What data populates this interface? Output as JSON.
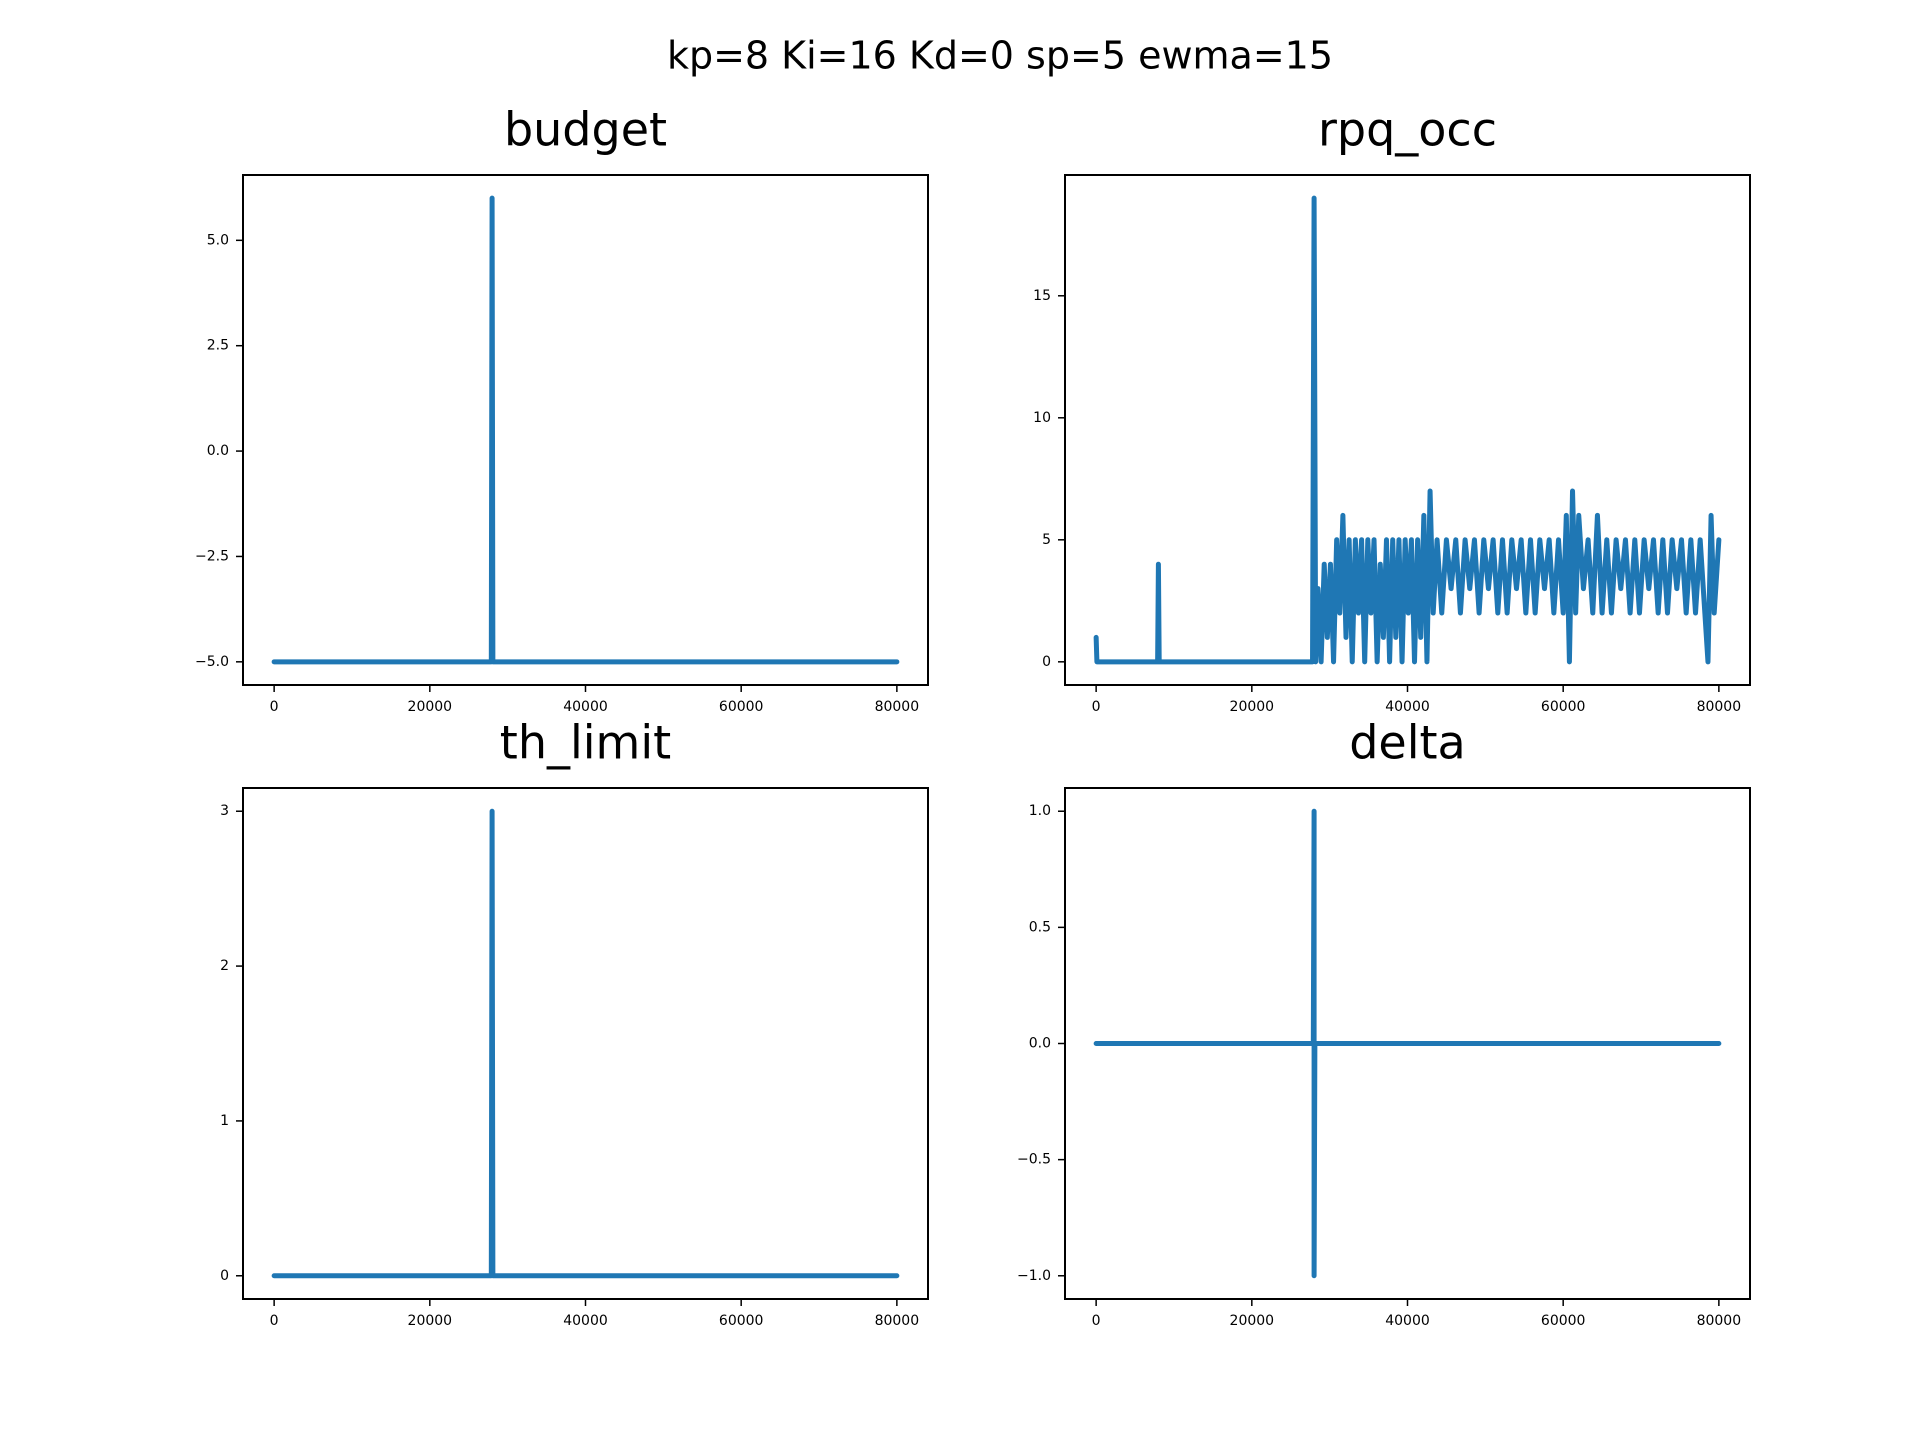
{
  "title": "kp=8 Ki=16 Kd=0 sp=5 ewma=15",
  "chart_data": [
    {
      "type": "line",
      "title": "budget",
      "color": "#1f77b4",
      "x": [
        0,
        27900,
        28000,
        28100,
        80000
      ],
      "values": [
        -5,
        -5,
        6,
        -5,
        -5
      ],
      "xlim": [
        -4000,
        84000
      ],
      "xticks": [
        0,
        20000,
        40000,
        60000,
        80000
      ],
      "ylim": [
        -5.55,
        6.55
      ],
      "yticks": [
        {
          "value": -5,
          "label": "−5.0"
        },
        {
          "value": -2.5,
          "label": "−2.5"
        },
        {
          "value": 0,
          "label": "0.0"
        },
        2.5,
        {
          "value": 5,
          "label": "5.0"
        }
      ]
    },
    {
      "type": "line",
      "title": "rpq_occ",
      "color": "#1f77b4",
      "x": [
        0,
        100,
        7900,
        8000,
        8100,
        27800,
        28000,
        28200,
        28500,
        28900,
        29300,
        29700,
        30100,
        30500,
        30900,
        31300,
        31700,
        32100,
        32500,
        32900,
        33300,
        33700,
        34100,
        34500,
        34900,
        35300,
        35700,
        36100,
        36500,
        36900,
        37300,
        37700,
        38100,
        38500,
        38900,
        39300,
        39700,
        40100,
        40500,
        40900,
        41300,
        41700,
        42100,
        42500,
        42900,
        43300,
        43800,
        44400,
        45000,
        45600,
        46200,
        46800,
        47400,
        48000,
        48600,
        49200,
        49800,
        50400,
        51000,
        51600,
        52200,
        52800,
        53400,
        54000,
        54600,
        55200,
        55800,
        56400,
        57000,
        57600,
        58200,
        58800,
        59400,
        60000,
        60400,
        60800,
        61200,
        61600,
        62000,
        62600,
        63200,
        63800,
        64400,
        65000,
        65600,
        66200,
        66800,
        67400,
        68000,
        68600,
        69200,
        69800,
        70400,
        71000,
        71600,
        72200,
        72800,
        73400,
        74000,
        74600,
        75200,
        75800,
        76400,
        77000,
        77600,
        78200,
        78600,
        79000,
        79400,
        80000
      ],
      "values": [
        1,
        0,
        0,
        4,
        0,
        0,
        19,
        0,
        3,
        0,
        4,
        1,
        4,
        0,
        5,
        2,
        6,
        1,
        5,
        0,
        5,
        2,
        5,
        0,
        5,
        2,
        5,
        0,
        4,
        1,
        5,
        0,
        5,
        1,
        5,
        0,
        5,
        2,
        5,
        0,
        5,
        1,
        6,
        0,
        7,
        2,
        5,
        2,
        5,
        3,
        5,
        2,
        5,
        3,
        5,
        2,
        5,
        3,
        5,
        2,
        5,
        2,
        5,
        3,
        5,
        2,
        5,
        2,
        5,
        3,
        5,
        2,
        5,
        2,
        6,
        0,
        7,
        2,
        6,
        3,
        5,
        2,
        6,
        2,
        5,
        2,
        5,
        3,
        5,
        2,
        5,
        2,
        5,
        3,
        5,
        2,
        5,
        2,
        5,
        3,
        5,
        2,
        5,
        2,
        5,
        2,
        0,
        6,
        2,
        5
      ],
      "xlim": [
        -4000,
        84000
      ],
      "xticks": [
        0,
        20000,
        40000,
        60000,
        80000
      ],
      "ylim": [
        -0.95,
        19.95
      ],
      "yticks": [
        0,
        5,
        10,
        15
      ]
    },
    {
      "type": "line",
      "title": "th_limit",
      "color": "#1f77b4",
      "x": [
        0,
        27900,
        28000,
        28100,
        80000
      ],
      "values": [
        0,
        0,
        3,
        0,
        0
      ],
      "xlim": [
        -4000,
        84000
      ],
      "xticks": [
        0,
        20000,
        40000,
        60000,
        80000
      ],
      "ylim": [
        -0.15,
        3.15
      ],
      "yticks": [
        0,
        1,
        2,
        3
      ]
    },
    {
      "type": "line",
      "title": "delta",
      "color": "#1f77b4",
      "x": [
        0,
        27900,
        28000,
        28000,
        28100,
        80000
      ],
      "values": [
        0,
        0,
        1,
        -1,
        0,
        0
      ],
      "xlim": [
        -4000,
        84000
      ],
      "xticks": [
        0,
        20000,
        40000,
        60000,
        80000
      ],
      "ylim": [
        -1.1,
        1.1
      ],
      "yticks": [
        {
          "value": -1,
          "label": "−1.0"
        },
        {
          "value": -0.5,
          "label": "−0.5"
        },
        {
          "value": 0,
          "label": "0.0"
        },
        0.5,
        {
          "value": 1,
          "label": "1.0"
        }
      ]
    }
  ]
}
